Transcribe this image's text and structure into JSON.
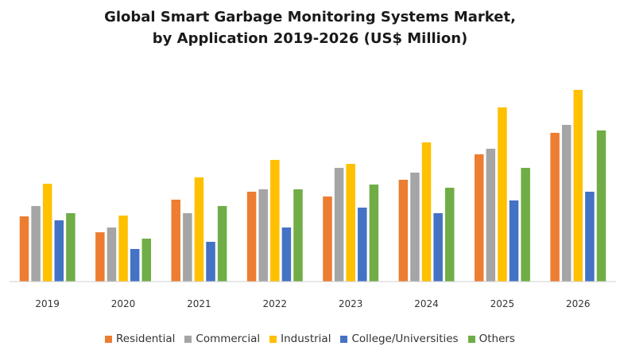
{
  "chart_data": {
    "type": "bar",
    "title_line1": "Global Smart Garbage Monitoring Systems Market,",
    "title_line2": "by Application 2019-2026 (US$ Million)",
    "xlabel": "",
    "ylabel": "",
    "ylim": [
      0,
      240
    ],
    "grid": false,
    "legend_position": "bottom",
    "categories": [
      "2019",
      "2020",
      "2021",
      "2022",
      "2023",
      "2024",
      "2025",
      "2026"
    ],
    "series": [
      {
        "name": "Residential",
        "color": "#ED7D31",
        "values": [
          82,
          62,
          103,
          113,
          107,
          128,
          160,
          187
        ]
      },
      {
        "name": "Commercial",
        "color": "#A5A5A5",
        "values": [
          95,
          68,
          86,
          116,
          143,
          137,
          167,
          197
        ]
      },
      {
        "name": "Industrial",
        "color": "#FFC000",
        "values": [
          123,
          83,
          131,
          153,
          148,
          175,
          219,
          241
        ]
      },
      {
        "name": "College/Universities",
        "color": "#4472C4",
        "values": [
          77,
          41,
          50,
          68,
          93,
          86,
          102,
          113
        ]
      },
      {
        "name": "Others",
        "color": "#70AD47",
        "values": [
          86,
          54,
          95,
          116,
          122,
          118,
          143,
          190
        ]
      }
    ]
  }
}
